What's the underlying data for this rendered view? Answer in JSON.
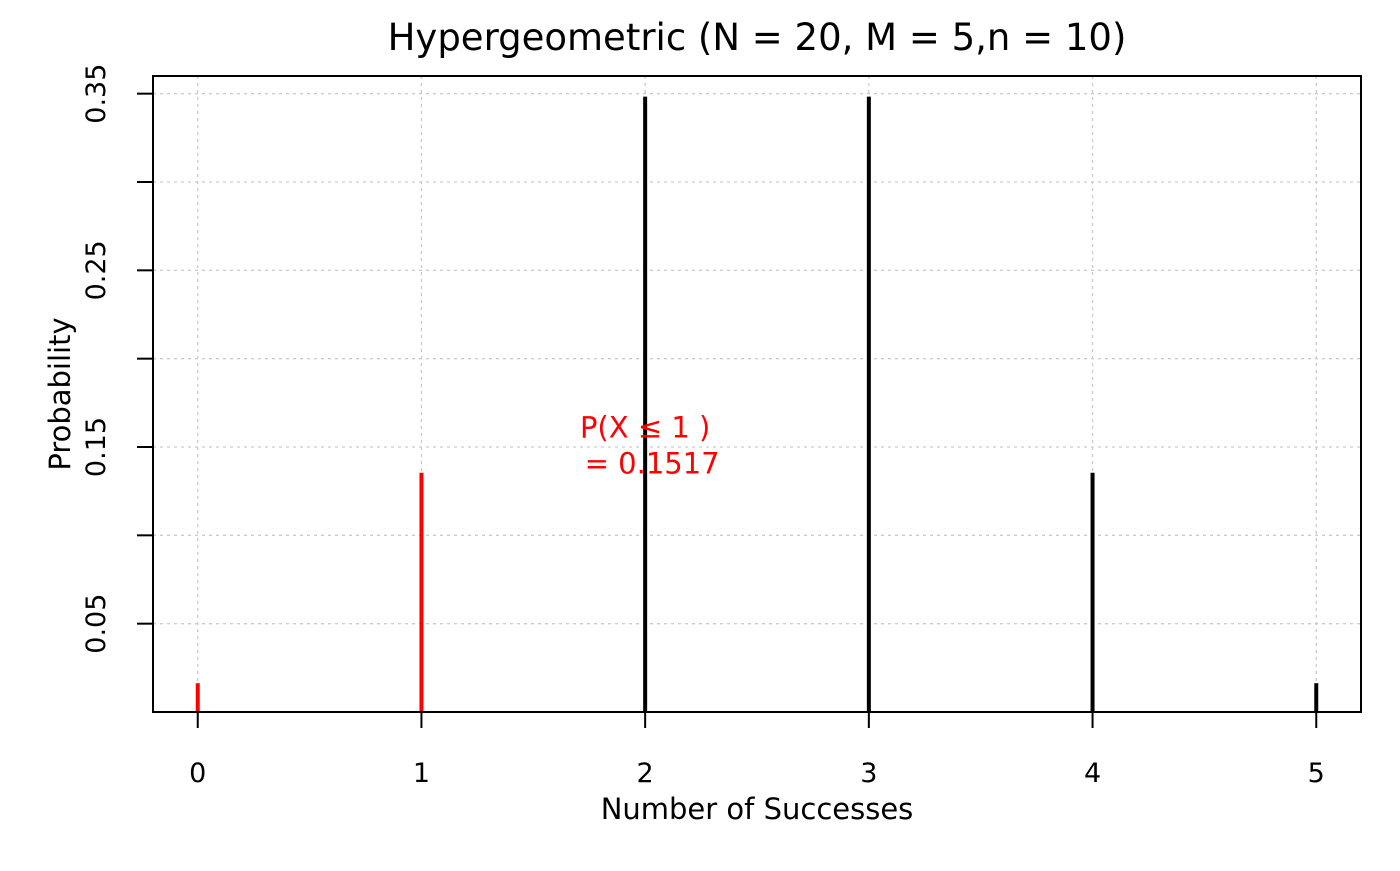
{
  "chart_data": {
    "type": "bar",
    "title": "Hypergeometric (N = 20,  M = 5,n = 10)",
    "xlabel": "Number of Successes",
    "ylabel": "Probability",
    "x": [
      0,
      1,
      2,
      3,
      4,
      5
    ],
    "values": [
      0.0163,
      0.1354,
      0.3483,
      0.3483,
      0.1354,
      0.0163
    ],
    "highlight_upto": 1,
    "highlight_color": "#ff0000",
    "base_color": "#000000",
    "xlim": [
      -0.2,
      5.2
    ],
    "ylim": [
      0,
      0.36
    ],
    "xticks": [
      "0",
      "1",
      "2",
      "3",
      "4",
      "5"
    ],
    "yticks": [
      0.05,
      0.1,
      0.15,
      0.2,
      0.25,
      0.3,
      0.35
    ],
    "ytick_labels": [
      "0.05",
      "",
      "0.15",
      "",
      "0.25",
      "",
      "0.35"
    ],
    "grid": true,
    "grid_color": "#cccccc",
    "annotation": {
      "line1": "P(X ≤  1 )",
      "line2": "=  0.1517",
      "x": 2.0,
      "y": 0.16,
      "color": "#ff0000"
    }
  }
}
